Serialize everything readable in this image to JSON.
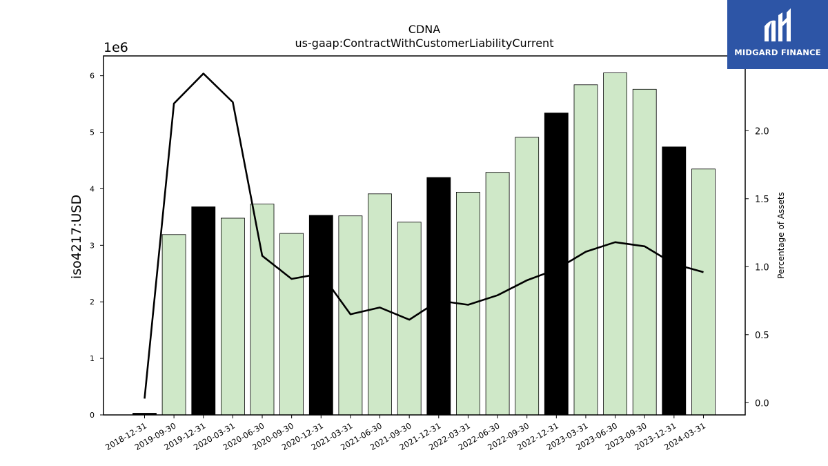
{
  "chart_data": {
    "type": "bar",
    "title": "CDNA",
    "subtitle": "us-gaap:ContractWithCustomerLiabilityCurrent",
    "ylabel": "iso4217:USD",
    "y_offset_label": "1e6",
    "y2label": "Percentage of Assets",
    "ylim": [
      0,
      6350000
    ],
    "y2lim": [
      -0.09,
      2.55
    ],
    "yticks": [
      "0",
      "1",
      "2",
      "3",
      "4",
      "5",
      "6"
    ],
    "y2ticks": [
      "0.0",
      "0.5",
      "1.0",
      "1.5",
      "2.0"
    ],
    "categories": [
      "2018-12-31",
      "2019-09-30",
      "2019-12-31",
      "2020-03-31",
      "2020-06-30",
      "2020-09-30",
      "2020-12-31",
      "2021-03-31",
      "2021-06-30",
      "2021-09-30",
      "2021-12-31",
      "2022-03-31",
      "2022-06-30",
      "2022-09-30",
      "2022-12-31",
      "2023-03-31",
      "2023-06-30",
      "2023-09-30",
      "2023-12-31",
      "2024-03-31"
    ],
    "series": [
      {
        "kind": "bar",
        "values": [
          30000,
          3190000,
          3680000,
          3480000,
          3730000,
          3210000,
          3530000,
          3520000,
          3910000,
          3410000,
          4200000,
          3940000,
          4290000,
          4910000,
          5340000,
          5840000,
          6050000,
          5760000,
          4740000,
          4350000
        ],
        "colors": [
          "#000000",
          "#cfe8c8",
          "#000000",
          "#cfe8c8",
          "#cfe8c8",
          "#cfe8c8",
          "#000000",
          "#cfe8c8",
          "#cfe8c8",
          "#cfe8c8",
          "#000000",
          "#cfe8c8",
          "#cfe8c8",
          "#cfe8c8",
          "#000000",
          "#cfe8c8",
          "#cfe8c8",
          "#cfe8c8",
          "#000000",
          "#cfe8c8"
        ]
      },
      {
        "kind": "line",
        "axis": "right",
        "color": "#000000",
        "values": [
          0.03,
          2.2,
          2.42,
          2.21,
          1.08,
          0.91,
          0.95,
          0.65,
          0.7,
          0.61,
          0.75,
          0.72,
          0.79,
          0.9,
          0.98,
          1.11,
          1.18,
          1.15,
          1.02,
          0.96
        ]
      }
    ],
    "grid": false
  },
  "logo": {
    "text": "MIDGARD FINANCE",
    "background": "#2d55a6",
    "icon": "midgard-logo-icon"
  }
}
